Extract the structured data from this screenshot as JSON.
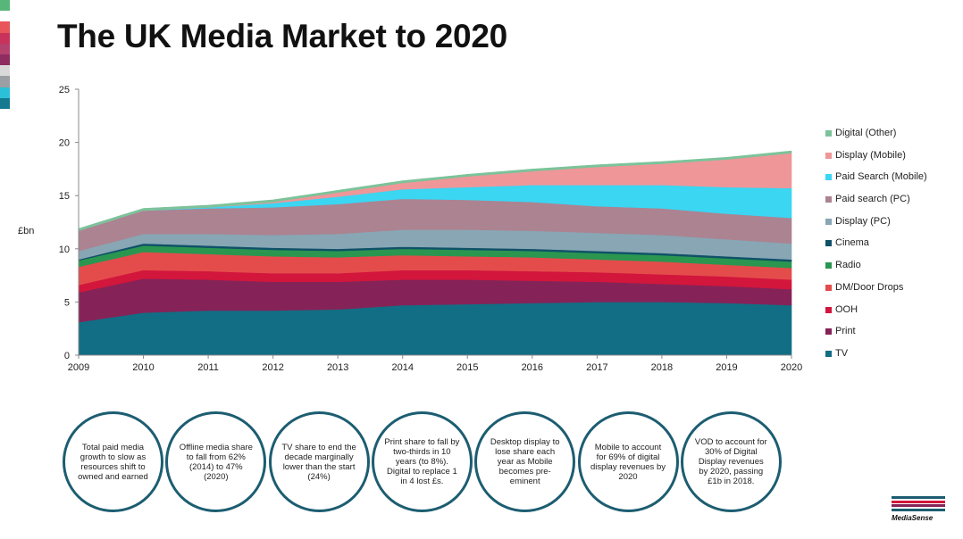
{
  "title": "The UK Media Market to 2020",
  "y_axis_unit": "£bn",
  "side_stripe_colors": [
    "#58b67a",
    "#ffffff",
    "#e8555a",
    "#c9325a",
    "#b4426e",
    "#8d2d60",
    "#d9d9d9",
    "#9b9ea2",
    "#2bc0d8",
    "#157a8f"
  ],
  "chart_data": {
    "type": "area",
    "stacked": true,
    "title": "",
    "xlabel": "",
    "ylabel": "£bn",
    "ylim": [
      0,
      25
    ],
    "yticks": [
      "0",
      "5",
      "10",
      "15",
      "20",
      "25"
    ],
    "x": [
      "2009",
      "2010",
      "2011",
      "2012",
      "2013",
      "2014",
      "2015",
      "2016",
      "2017",
      "2018",
      "2019",
      "2020"
    ],
    "grid": false,
    "legend_position": "right",
    "series": [
      {
        "name": "TV",
        "color": "#126e84",
        "values": [
          3.1,
          4.0,
          4.2,
          4.2,
          4.3,
          4.7,
          4.8,
          4.9,
          5.0,
          5.0,
          4.9,
          4.7
        ]
      },
      {
        "name": "Print",
        "color": "#852358",
        "values": [
          2.8,
          3.2,
          2.9,
          2.7,
          2.6,
          2.4,
          2.3,
          2.1,
          1.9,
          1.7,
          1.6,
          1.5
        ]
      },
      {
        "name": "OOH",
        "color": "#d2163c",
        "values": [
          0.7,
          0.8,
          0.8,
          0.8,
          0.8,
          0.9,
          0.9,
          0.9,
          0.9,
          0.9,
          0.9,
          0.9
        ]
      },
      {
        "name": "DM/Door Drops",
        "color": "#e44c4c",
        "values": [
          1.7,
          1.7,
          1.6,
          1.6,
          1.5,
          1.4,
          1.3,
          1.3,
          1.2,
          1.2,
          1.1,
          1.1
        ]
      },
      {
        "name": "Radio",
        "color": "#2a9650",
        "values": [
          0.6,
          0.6,
          0.6,
          0.6,
          0.6,
          0.6,
          0.6,
          0.6,
          0.6,
          0.6,
          0.6,
          0.6
        ]
      },
      {
        "name": "Cinema",
        "color": "#0f5168",
        "values": [
          0.1,
          0.2,
          0.2,
          0.2,
          0.2,
          0.2,
          0.2,
          0.2,
          0.2,
          0.2,
          0.2,
          0.2
        ]
      },
      {
        "name": "Display (PC)",
        "color": "#88a6b4",
        "values": [
          0.8,
          0.9,
          1.1,
          1.2,
          1.4,
          1.6,
          1.7,
          1.7,
          1.7,
          1.7,
          1.6,
          1.5
        ]
      },
      {
        "name": "Paid search (PC)",
        "color": "#ac8391",
        "values": [
          1.9,
          2.2,
          2.4,
          2.6,
          2.8,
          2.9,
          2.8,
          2.7,
          2.5,
          2.5,
          2.4,
          2.4
        ]
      },
      {
        "name": "Paid Search (Mobile)",
        "color": "#3ad6f2",
        "values": [
          0.0,
          0.0,
          0.1,
          0.4,
          0.7,
          0.9,
          1.2,
          1.6,
          2.0,
          2.2,
          2.5,
          2.8
        ]
      },
      {
        "name": "Display (Mobile)",
        "color": "#ef9699",
        "values": [
          0.0,
          0.0,
          0.0,
          0.1,
          0.4,
          0.6,
          1.0,
          1.3,
          1.7,
          2.0,
          2.6,
          3.3
        ]
      },
      {
        "name": "Digital (Other)",
        "color": "#7cc39a",
        "values": [
          0.2,
          0.2,
          0.2,
          0.2,
          0.2,
          0.2,
          0.2,
          0.2,
          0.2,
          0.2,
          0.2,
          0.2
        ]
      }
    ]
  },
  "legend_items": [
    {
      "label": "Digital (Other)",
      "color": "#7cc39a"
    },
    {
      "label": "Display (Mobile)",
      "color": "#ef9699"
    },
    {
      "label": "Paid Search (Mobile)",
      "color": "#3ad6f2"
    },
    {
      "label": "Paid search (PC)",
      "color": "#ac8391"
    },
    {
      "label": "Display (PC)",
      "color": "#88a6b4"
    },
    {
      "label": "Cinema",
      "color": "#0f5168"
    },
    {
      "label": "Radio",
      "color": "#2a9650"
    },
    {
      "label": "DM/Door Drops",
      "color": "#e44c4c"
    },
    {
      "label": "OOH",
      "color": "#d2163c"
    },
    {
      "label": "Print",
      "color": "#852358"
    },
    {
      "label": "TV",
      "color": "#126e84"
    }
  ],
  "insights": [
    "Total paid media growth to slow as resources shift to owned and earned",
    "Offline media share to fall from 62% (2014) to 47% (2020)",
    "TV share to end the decade marginally lower than the start (24%)",
    "Print share to fall by two-thirds in 10 years (to 8%). Digital to replace 1 in 4 lost £s.",
    "Desktop display to lose share each year as Mobile becomes pre-eminent",
    "Mobile to account for 69% of digital display revenues by 2020",
    "VOD to account for 30% of Digital Display revenues by 2020, passing £1b in 2018."
  ],
  "logo": {
    "name": "MediaSense",
    "bar_colors": [
      "#1c5d71",
      "#d2163c",
      "#852358",
      "#1c5d71"
    ]
  }
}
